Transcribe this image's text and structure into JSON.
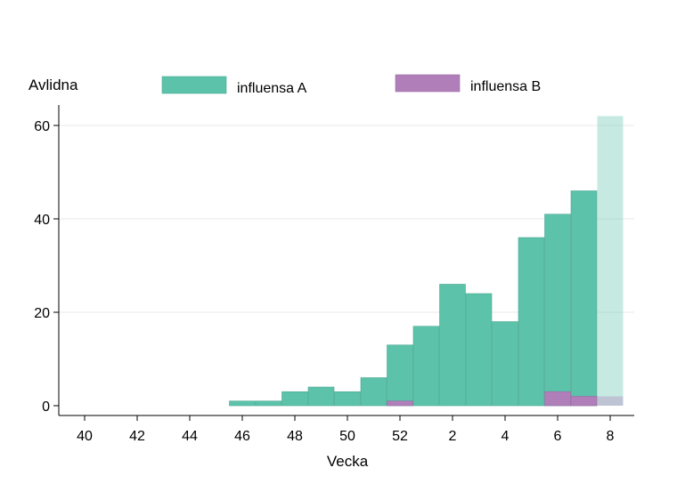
{
  "chart_data": {
    "type": "bar",
    "stacked": false,
    "xlabel": "Vecka",
    "ylabel": "Avlidna",
    "ylim": [
      0,
      62
    ],
    "y_ticks": [
      0,
      20,
      40,
      60
    ],
    "x_tick_labels": [
      "40",
      "42",
      "44",
      "46",
      "48",
      "50",
      "52",
      "2",
      "4",
      "6",
      "8"
    ],
    "categories": [
      "40",
      "41",
      "42",
      "43",
      "44",
      "45",
      "46",
      "47",
      "48",
      "49",
      "50",
      "51",
      "52",
      "1",
      "2",
      "3",
      "4",
      "5",
      "6",
      "7",
      "8"
    ],
    "series": [
      {
        "name": "influensa A",
        "color": "#5cc2aa",
        "values": [
          0,
          0,
          0,
          0,
          0,
          0,
          1,
          1,
          3,
          4,
          3,
          6,
          13,
          17,
          26,
          24,
          18,
          36,
          41,
          46,
          62
        ]
      },
      {
        "name": "influensa B",
        "color": "#b07fb9",
        "values": [
          0,
          0,
          0,
          0,
          0,
          0,
          0,
          0,
          0,
          0,
          0,
          0,
          1,
          0,
          0,
          0,
          0,
          0,
          3,
          2,
          2
        ]
      }
    ],
    "preliminary_last_week": true,
    "grid": "horizontal",
    "legend_position": "top"
  }
}
